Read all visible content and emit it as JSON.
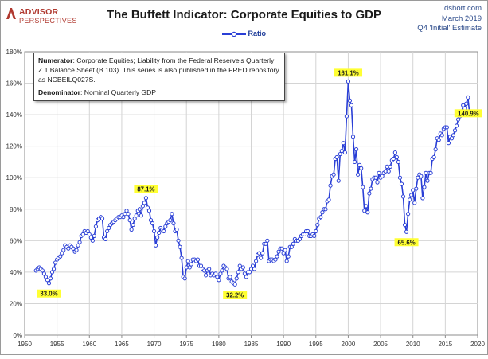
{
  "header": {
    "logo_line1": "ADVISOR",
    "logo_line2": "PERSPECTIVES",
    "title": "The Buffett Indicator: Corporate Equities to GDP",
    "source_line1": "dshort.com",
    "source_line2": "March 2019",
    "source_line3": "Q4 'Initial' Estimate"
  },
  "note": {
    "numerator_label": "Numerator",
    "numerator_text": ": Corporate Equities; Liability from the Federal Reserve's Quarterly Z.1 Balance Sheet (B.103). This series is also published in the FRED repository as NCBEILQ027S.",
    "denominator_label": "Denominator",
    "denominator_text": ": Nominal Quarterly GDP"
  },
  "colors": {
    "series": "#2a3fd6",
    "label_bg": "#ffff33",
    "grid": "#d4d4d4",
    "logo": "#b0392f"
  },
  "chart_data": {
    "type": "line",
    "title": "The Buffett Indicator: Corporate Equities to GDP",
    "xlabel": "",
    "ylabel": "",
    "xlim": [
      1950,
      2020
    ],
    "ylim": [
      0,
      180
    ],
    "legend": "top-center",
    "grid": true,
    "x_ticks": [
      "1950",
      "1955",
      "1960",
      "1965",
      "1970",
      "1975",
      "1980",
      "1985",
      "1990",
      "1995",
      "2000",
      "2005",
      "2010",
      "2015",
      "2020"
    ],
    "y_ticks": [
      "0%",
      "20%",
      "40%",
      "60%",
      "80%",
      "100%",
      "120%",
      "140%",
      "160%",
      "180%"
    ],
    "series": [
      {
        "name": "Ratio",
        "points": [
          [
            1951.75,
            41
          ],
          [
            1952.0,
            42
          ],
          [
            1952.25,
            43
          ],
          [
            1952.5,
            42
          ],
          [
            1952.75,
            41
          ],
          [
            1953.0,
            39
          ],
          [
            1953.25,
            37
          ],
          [
            1953.5,
            35
          ],
          [
            1953.75,
            33
          ],
          [
            1954.0,
            36
          ],
          [
            1954.25,
            40
          ],
          [
            1954.5,
            42
          ],
          [
            1954.75,
            46
          ],
          [
            1955.0,
            48
          ],
          [
            1955.25,
            49
          ],
          [
            1955.5,
            50
          ],
          [
            1955.75,
            52
          ],
          [
            1956.0,
            54
          ],
          [
            1956.25,
            57
          ],
          [
            1956.5,
            56
          ],
          [
            1956.75,
            55
          ],
          [
            1957.0,
            57
          ],
          [
            1957.25,
            56
          ],
          [
            1957.5,
            55
          ],
          [
            1957.75,
            53
          ],
          [
            1958.0,
            54
          ],
          [
            1958.25,
            57
          ],
          [
            1958.5,
            59
          ],
          [
            1958.75,
            63
          ],
          [
            1959.0,
            64
          ],
          [
            1959.25,
            66
          ],
          [
            1959.5,
            65
          ],
          [
            1959.75,
            66
          ],
          [
            1960.0,
            64
          ],
          [
            1960.25,
            62
          ],
          [
            1960.5,
            60
          ],
          [
            1960.75,
            63
          ],
          [
            1961.0,
            69
          ],
          [
            1961.25,
            73
          ],
          [
            1961.5,
            74
          ],
          [
            1961.75,
            75
          ],
          [
            1962.0,
            74
          ],
          [
            1962.25,
            62
          ],
          [
            1962.5,
            61
          ],
          [
            1962.75,
            66
          ],
          [
            1963.0,
            68
          ],
          [
            1963.25,
            70
          ],
          [
            1963.5,
            71
          ],
          [
            1963.75,
            72
          ],
          [
            1964.0,
            73
          ],
          [
            1964.25,
            74
          ],
          [
            1964.5,
            75
          ],
          [
            1964.75,
            75
          ],
          [
            1965.0,
            76
          ],
          [
            1965.25,
            75
          ],
          [
            1965.5,
            77
          ],
          [
            1965.75,
            79
          ],
          [
            1966.0,
            77
          ],
          [
            1966.25,
            73
          ],
          [
            1966.5,
            67
          ],
          [
            1966.75,
            70
          ],
          [
            1967.0,
            74
          ],
          [
            1967.25,
            76
          ],
          [
            1967.5,
            79
          ],
          [
            1967.75,
            80
          ],
          [
            1968.0,
            76
          ],
          [
            1968.25,
            82
          ],
          [
            1968.5,
            84
          ],
          [
            1968.75,
            87.1
          ],
          [
            1969.0,
            81
          ],
          [
            1969.25,
            79
          ],
          [
            1969.5,
            73
          ],
          [
            1969.75,
            71
          ],
          [
            1970.0,
            66
          ],
          [
            1970.25,
            57
          ],
          [
            1970.5,
            62
          ],
          [
            1970.75,
            65
          ],
          [
            1971.0,
            68
          ],
          [
            1971.25,
            67
          ],
          [
            1971.5,
            66
          ],
          [
            1971.75,
            69
          ],
          [
            1972.0,
            71
          ],
          [
            1972.25,
            72
          ],
          [
            1972.5,
            73
          ],
          [
            1972.75,
            77
          ],
          [
            1973.0,
            71
          ],
          [
            1973.25,
            66
          ],
          [
            1973.5,
            67
          ],
          [
            1973.75,
            60
          ],
          [
            1974.0,
            56
          ],
          [
            1974.25,
            49
          ],
          [
            1974.5,
            37
          ],
          [
            1974.75,
            36
          ],
          [
            1975.0,
            43
          ],
          [
            1975.25,
            47
          ],
          [
            1975.5,
            43
          ],
          [
            1975.75,
            45
          ],
          [
            1976.0,
            48
          ],
          [
            1976.25,
            48
          ],
          [
            1976.5,
            47
          ],
          [
            1976.75,
            48
          ],
          [
            1977.0,
            44
          ],
          [
            1977.25,
            44
          ],
          [
            1977.5,
            42
          ],
          [
            1977.75,
            41
          ],
          [
            1978.0,
            38
          ],
          [
            1978.25,
            41
          ],
          [
            1978.5,
            42
          ],
          [
            1978.75,
            38
          ],
          [
            1979.0,
            39
          ],
          [
            1979.25,
            38
          ],
          [
            1979.5,
            39
          ],
          [
            1979.75,
            37
          ],
          [
            1980.0,
            35
          ],
          [
            1980.25,
            39
          ],
          [
            1980.5,
            41
          ],
          [
            1980.75,
            44
          ],
          [
            1981.0,
            43
          ],
          [
            1981.25,
            42
          ],
          [
            1981.5,
            36
          ],
          [
            1981.75,
            37
          ],
          [
            1982.0,
            34
          ],
          [
            1982.25,
            33
          ],
          [
            1982.5,
            32.2
          ],
          [
            1982.75,
            36
          ],
          [
            1983.0,
            40
          ],
          [
            1983.25,
            44
          ],
          [
            1983.5,
            42
          ],
          [
            1983.75,
            43
          ],
          [
            1984.0,
            39
          ],
          [
            1984.25,
            37
          ],
          [
            1984.5,
            40
          ],
          [
            1984.75,
            40
          ],
          [
            1985.0,
            42
          ],
          [
            1985.25,
            44
          ],
          [
            1985.5,
            42
          ],
          [
            1985.75,
            47
          ],
          [
            1986.0,
            51
          ],
          [
            1986.25,
            52
          ],
          [
            1986.5,
            49
          ],
          [
            1986.75,
            52
          ],
          [
            1987.0,
            58
          ],
          [
            1987.25,
            58
          ],
          [
            1987.5,
            60
          ],
          [
            1987.75,
            47
          ],
          [
            1988.0,
            48
          ],
          [
            1988.25,
            48
          ],
          [
            1988.5,
            47
          ],
          [
            1988.75,
            48
          ],
          [
            1989.0,
            50
          ],
          [
            1989.25,
            53
          ],
          [
            1989.5,
            55
          ],
          [
            1989.75,
            55
          ],
          [
            1990.0,
            52
          ],
          [
            1990.25,
            54
          ],
          [
            1990.5,
            47
          ],
          [
            1990.75,
            50
          ],
          [
            1991.0,
            56
          ],
          [
            1991.25,
            56
          ],
          [
            1991.5,
            58
          ],
          [
            1991.75,
            61
          ],
          [
            1992.0,
            60
          ],
          [
            1992.25,
            60
          ],
          [
            1992.5,
            61
          ],
          [
            1992.75,
            63
          ],
          [
            1993.0,
            64
          ],
          [
            1993.25,
            64
          ],
          [
            1993.5,
            66
          ],
          [
            1993.75,
            66
          ],
          [
            1994.0,
            63
          ],
          [
            1994.25,
            63
          ],
          [
            1994.5,
            64
          ],
          [
            1994.75,
            63
          ],
          [
            1995.0,
            66
          ],
          [
            1995.25,
            70
          ],
          [
            1995.5,
            74
          ],
          [
            1995.75,
            75
          ],
          [
            1996.0,
            78
          ],
          [
            1996.25,
            80
          ],
          [
            1996.5,
            80
          ],
          [
            1996.75,
            85
          ],
          [
            1997.0,
            86
          ],
          [
            1997.25,
            95
          ],
          [
            1997.5,
            101
          ],
          [
            1997.75,
            102
          ],
          [
            1998.0,
            112
          ],
          [
            1998.25,
            113
          ],
          [
            1998.5,
            98
          ],
          [
            1998.75,
            115
          ],
          [
            1999.0,
            117
          ],
          [
            1999.25,
            122
          ],
          [
            1999.5,
            116
          ],
          [
            1999.75,
            139
          ],
          [
            2000.0,
            161.1
          ],
          [
            2000.25,
            149
          ],
          [
            2000.5,
            146
          ],
          [
            2000.75,
            126
          ],
          [
            2001.0,
            110
          ],
          [
            2001.25,
            118
          ],
          [
            2001.5,
            102
          ],
          [
            2001.75,
            108
          ],
          [
            2002.0,
            106
          ],
          [
            2002.25,
            94
          ],
          [
            2002.5,
            79
          ],
          [
            2002.75,
            82
          ],
          [
            2003.0,
            78
          ],
          [
            2003.25,
            90
          ],
          [
            2003.5,
            93
          ],
          [
            2003.75,
            99
          ],
          [
            2004.0,
            100
          ],
          [
            2004.25,
            100
          ],
          [
            2004.5,
            97
          ],
          [
            2004.75,
            103
          ],
          [
            2005.0,
            100
          ],
          [
            2005.25,
            101
          ],
          [
            2005.5,
            103
          ],
          [
            2005.75,
            104
          ],
          [
            2006.0,
            107
          ],
          [
            2006.25,
            104
          ],
          [
            2006.5,
            107
          ],
          [
            2006.75,
            111
          ],
          [
            2007.0,
            112
          ],
          [
            2007.25,
            116
          ],
          [
            2007.5,
            113
          ],
          [
            2007.75,
            110
          ],
          [
            2008.0,
            100
          ],
          [
            2008.25,
            96
          ],
          [
            2008.5,
            88
          ],
          [
            2008.75,
            70
          ],
          [
            2009.0,
            65.6
          ],
          [
            2009.25,
            77
          ],
          [
            2009.5,
            86
          ],
          [
            2009.75,
            89
          ],
          [
            2010.0,
            92
          ],
          [
            2010.25,
            84
          ],
          [
            2010.5,
            93
          ],
          [
            2010.75,
            100
          ],
          [
            2011.0,
            102
          ],
          [
            2011.25,
            101
          ],
          [
            2011.5,
            87
          ],
          [
            2011.75,
            94
          ],
          [
            2012.0,
            103
          ],
          [
            2012.25,
            98
          ],
          [
            2012.5,
            103
          ],
          [
            2012.75,
            103
          ],
          [
            2013.0,
            112
          ],
          [
            2013.25,
            113
          ],
          [
            2013.5,
            118
          ],
          [
            2013.75,
            125
          ],
          [
            2014.0,
            124
          ],
          [
            2014.25,
            128
          ],
          [
            2014.5,
            127
          ],
          [
            2014.75,
            131
          ],
          [
            2015.0,
            132
          ],
          [
            2015.25,
            132
          ],
          [
            2015.5,
            122
          ],
          [
            2015.75,
            126
          ],
          [
            2016.0,
            125
          ],
          [
            2016.25,
            127
          ],
          [
            2016.5,
            130
          ],
          [
            2016.75,
            133
          ],
          [
            2017.0,
            137
          ],
          [
            2017.25,
            139
          ],
          [
            2017.5,
            141
          ],
          [
            2017.75,
            146
          ],
          [
            2018.0,
            144
          ],
          [
            2018.25,
            147
          ],
          [
            2018.5,
            151
          ],
          [
            2018.75,
            140.9
          ]
        ]
      }
    ],
    "annotations": [
      {
        "label": "33.0%",
        "x": 1953.75,
        "y": 33.0,
        "position": "below"
      },
      {
        "label": "87.1%",
        "x": 1968.75,
        "y": 87.1,
        "position": "above"
      },
      {
        "label": "32.2%",
        "x": 1982.5,
        "y": 32.2,
        "position": "below"
      },
      {
        "label": "161.1%",
        "x": 2000.0,
        "y": 161.1,
        "position": "above"
      },
      {
        "label": "65.6%",
        "x": 2009.0,
        "y": 65.6,
        "position": "below"
      },
      {
        "label": "140.9%",
        "x": 2018.75,
        "y": 140.9,
        "position": "right"
      }
    ]
  }
}
